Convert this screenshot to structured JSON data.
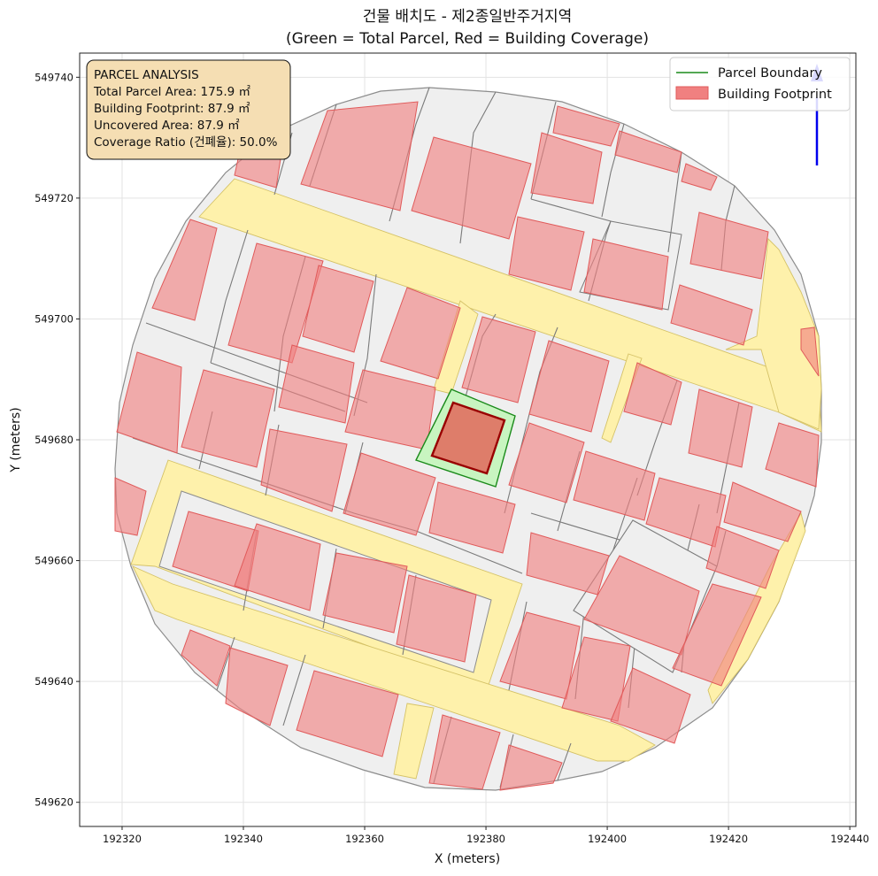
{
  "title_line1": "건물 배치도 - 제2종일반주거지역",
  "title_line2": "(Green = Total Parcel, Red = Building Coverage)",
  "xlabel": "X (meters)",
  "ylabel": "Y (meters)",
  "x_ticks": [
    "192320",
    "192340",
    "192360",
    "192380",
    "192400",
    "192420",
    "192440"
  ],
  "y_ticks": [
    "549740",
    "549720",
    "549700",
    "549680",
    "549660",
    "549640",
    "549620"
  ],
  "info_box": {
    "line1": "PARCEL ANALYSIS",
    "line2": "Total Parcel Area: 175.9 ㎡",
    "line3": "Building Footprint: 87.9 ㎡",
    "line4": "Uncovered Area: 87.9 ㎡",
    "line5": "Coverage Ratio (건폐율): 50.0%"
  },
  "legend": {
    "parcel": "Parcel Boundary",
    "building": "Building Footprint"
  },
  "colors": {
    "parcel_line": "#1a8a1a",
    "parcel_fill": "#c8f5c0",
    "building_fill": "#f08080",
    "target_building": "#e07060",
    "target_outline": "#990000",
    "road": "#fff2a8",
    "lot_fill": "#efefef",
    "info_bg": "#f5deb3",
    "north_arrow": "#0000ee"
  },
  "map_data": {
    "x_range": [
      192313,
      192441
    ],
    "y_range": [
      549616,
      549744
    ],
    "target_parcel_area_m2": 175.9,
    "target_building_area_m2": 87.9,
    "coverage_ratio_pct": 50.0
  }
}
